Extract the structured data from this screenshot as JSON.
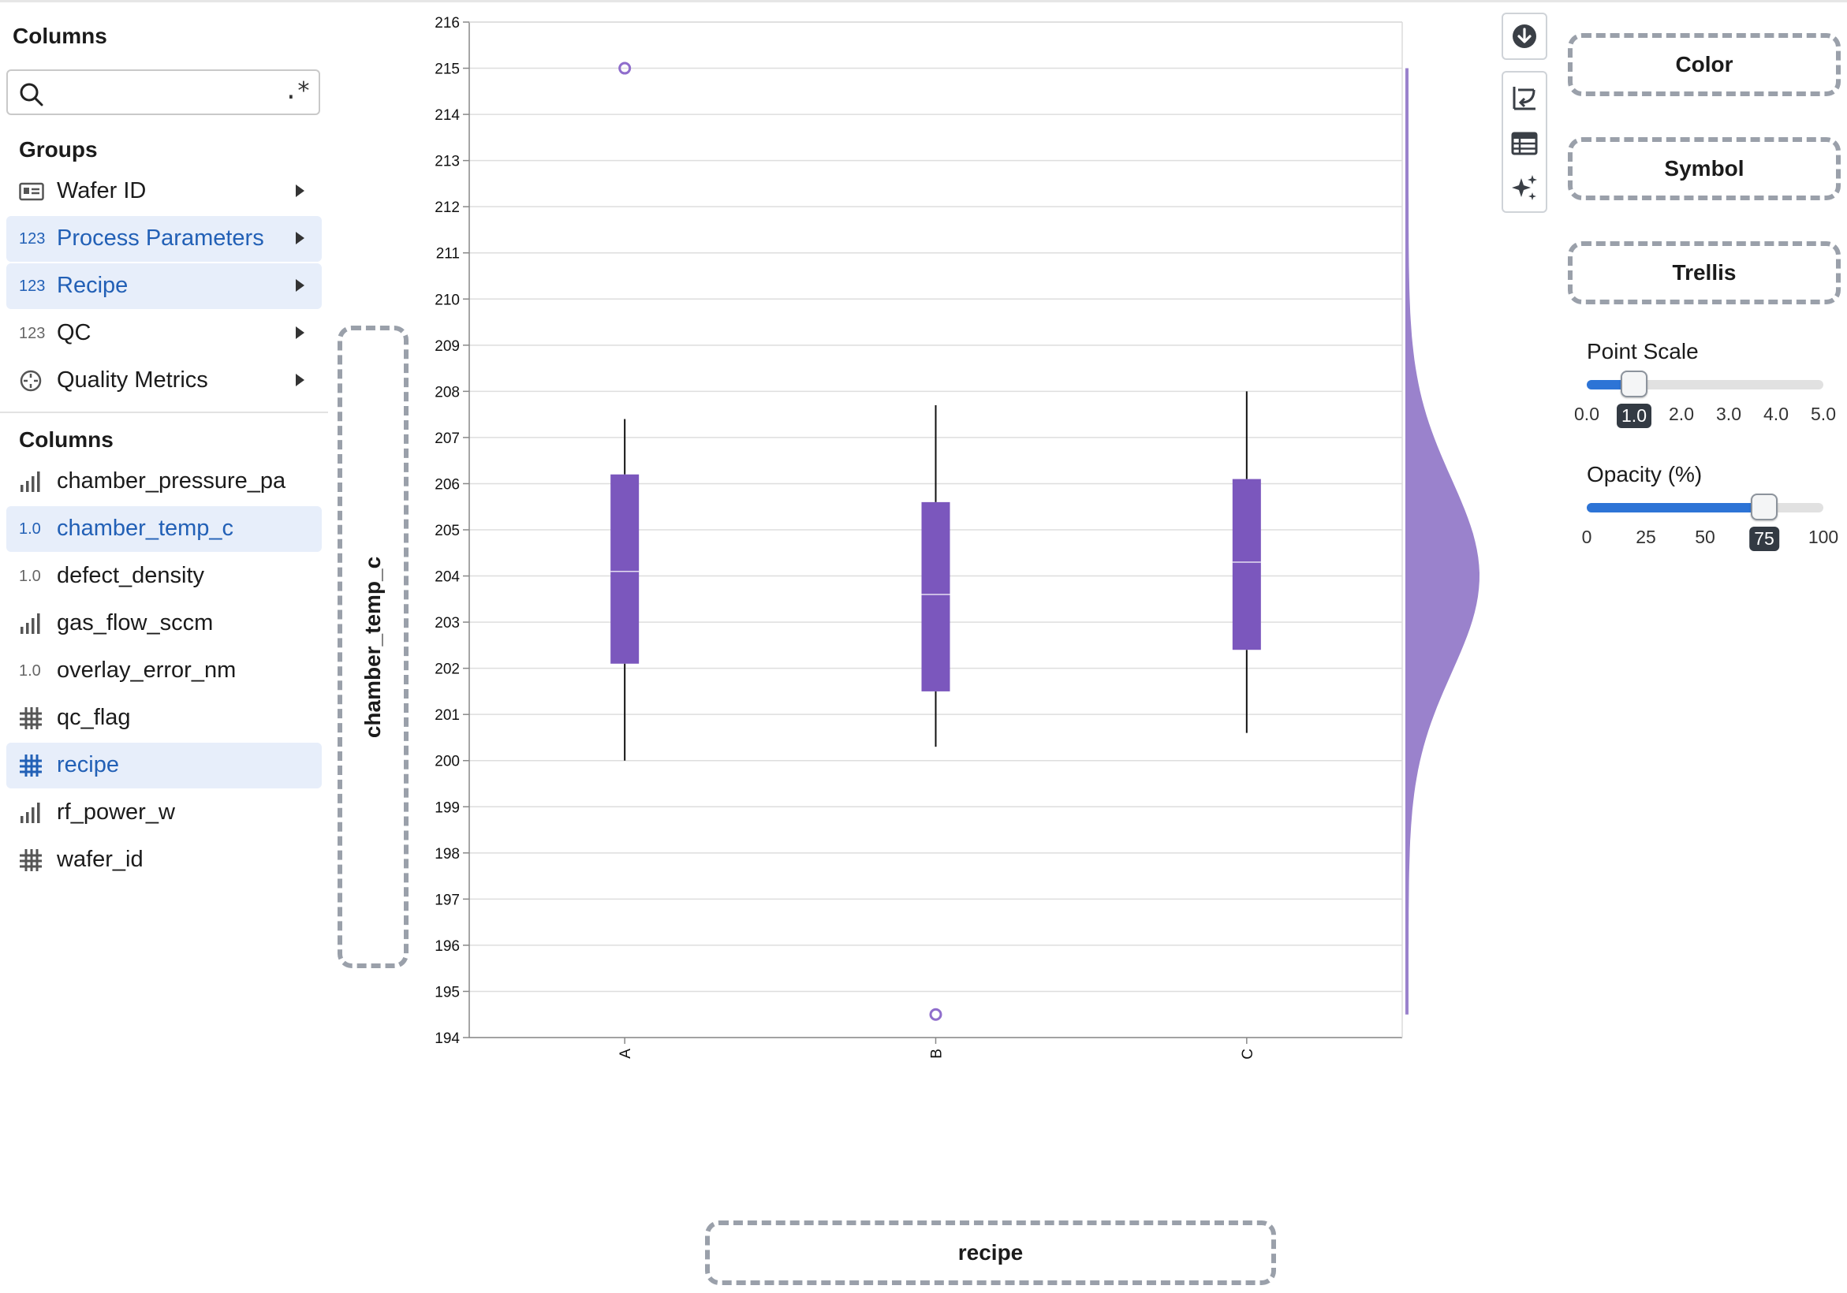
{
  "sidebar": {
    "title": "Columns",
    "search": {
      "value": "",
      "placeholder": "",
      "regex_label": ".*"
    },
    "groups_title": "Groups",
    "groups": [
      {
        "label": "Wafer ID",
        "icon": "id-card-icon",
        "selected": false
      },
      {
        "label": "Process Parameters",
        "icon": "123",
        "selected": true
      },
      {
        "label": "Recipe",
        "icon": "123",
        "selected": true
      },
      {
        "label": "QC",
        "icon": "123",
        "selected": false
      },
      {
        "label": "Quality Metrics",
        "icon": "target-icon",
        "selected": false
      }
    ],
    "columns_title": "Columns",
    "columns": [
      {
        "label": "chamber_pressure_pa",
        "icon": "bar-chart-icon",
        "selected": false
      },
      {
        "label": "chamber_temp_c",
        "icon": "1.0",
        "selected": true
      },
      {
        "label": "defect_density",
        "icon": "1.0",
        "selected": false
      },
      {
        "label": "gas_flow_sccm",
        "icon": "bar-chart-icon",
        "selected": false
      },
      {
        "label": "overlay_error_nm",
        "icon": "1.0",
        "selected": false
      },
      {
        "label": "qc_flag",
        "icon": "hash-grid-icon",
        "selected": false
      },
      {
        "label": "recipe",
        "icon": "hash-grid-icon",
        "selected": true
      },
      {
        "label": "rf_power_w",
        "icon": "bar-chart-icon",
        "selected": false
      },
      {
        "label": "wafer_id",
        "icon": "hash-grid-icon",
        "selected": false
      }
    ]
  },
  "encodings": {
    "y": "chamber_temp_c",
    "x": "recipe",
    "color": "Color",
    "symbol": "Symbol",
    "trellis": "Trellis"
  },
  "toolbar": [
    "download-icon",
    "swap-axes-icon",
    "table-icon",
    "sparkle-icon"
  ],
  "point_scale": {
    "title": "Point Scale",
    "value": 1.0,
    "min": 0,
    "max": 5,
    "ticks": [
      "0.0",
      "1.0",
      "2.0",
      "3.0",
      "4.0",
      "5.0"
    ]
  },
  "opacity": {
    "title": "Opacity (%)",
    "value": 75,
    "min": 0,
    "max": 100,
    "ticks": [
      "0",
      "25",
      "50",
      "75",
      "100"
    ]
  },
  "colors": {
    "box": "#7b57bd",
    "density": "#9a82cc",
    "accent": "#2d74d6",
    "selected_text": "#2260b6"
  },
  "chart_data": {
    "type": "box",
    "categories": [
      "A",
      "B",
      "C"
    ],
    "ylim": [
      194,
      216
    ],
    "yticks": [
      194,
      195,
      196,
      197,
      198,
      199,
      200,
      201,
      202,
      203,
      204,
      205,
      206,
      207,
      208,
      209,
      210,
      211,
      212,
      213,
      214,
      215,
      216
    ],
    "boxes": [
      {
        "category": "A",
        "whisker_low": 200.0,
        "q1": 202.1,
        "median": 204.1,
        "q3": 206.2,
        "whisker_high": 207.4,
        "outliers": [
          215.0
        ]
      },
      {
        "category": "B",
        "whisker_low": 200.3,
        "q1": 201.5,
        "median": 203.6,
        "q3": 205.6,
        "whisker_high": 207.7,
        "outliers": [
          194.5
        ]
      },
      {
        "category": "C",
        "whisker_low": 200.6,
        "q1": 202.4,
        "median": 204.3,
        "q3": 206.1,
        "whisker_high": 208.0,
        "outliers": []
      }
    ],
    "marginal_density": {
      "mean": 204.0,
      "sd": 2.1,
      "range": [
        194.5,
        215.0
      ]
    },
    "grid": true
  }
}
